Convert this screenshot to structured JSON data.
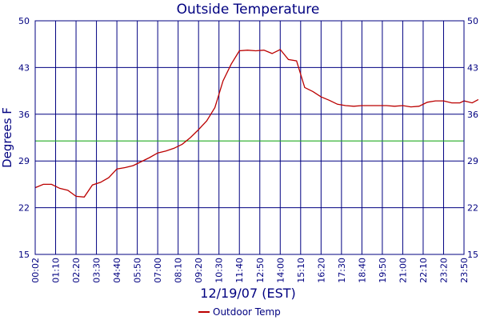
{
  "chart_data": {
    "type": "line",
    "title": "Outside Temperature",
    "xlabel": "12/19/07 (EST)",
    "ylabel": "Degrees F",
    "ylim": [
      15,
      50
    ],
    "yticks": [
      15,
      22,
      29,
      36,
      43,
      50
    ],
    "x_tick_labels": [
      "00:02",
      "01:10",
      "02:20",
      "03:30",
      "04:40",
      "05:50",
      "07:00",
      "08:10",
      "09:20",
      "10:30",
      "11:40",
      "12:50",
      "14:00",
      "15:10",
      "16:20",
      "17:30",
      "18:40",
      "19:50",
      "21:00",
      "22:10",
      "23:20",
      "23:50"
    ],
    "grid": true,
    "legend_position": "bottom",
    "colors": {
      "series": "#bb0000",
      "reference": "#22aa22",
      "grid": "#000080"
    },
    "reference_line": {
      "y": 32
    },
    "series": [
      {
        "name": "Outdoor Temp",
        "x": [
          0,
          0.4,
          0.8,
          1.2,
          1.6,
          2.0,
          2.4,
          2.8,
          3.2,
          3.6,
          4.0,
          4.4,
          4.8,
          5.2,
          5.6,
          6.0,
          6.4,
          6.8,
          7.2,
          7.6,
          8.0,
          8.4,
          8.8,
          9.2,
          9.6,
          10.0,
          10.4,
          10.8,
          11.2,
          11.6,
          12.0,
          12.4,
          12.8,
          13.2,
          13.6,
          14.0,
          14.4,
          14.8,
          15.2,
          15.6,
          16.0,
          16.4,
          16.8,
          17.2,
          17.6,
          18.0,
          18.4,
          18.8,
          19.2,
          19.6,
          20.0,
          20.4,
          20.8,
          21.0,
          21.4,
          21.7
        ],
        "values": [
          25.0,
          25.5,
          25.5,
          24.9,
          24.6,
          23.7,
          23.6,
          25.4,
          25.8,
          26.5,
          27.8,
          28.0,
          28.3,
          28.9,
          29.5,
          30.2,
          30.5,
          30.9,
          31.5,
          32.5,
          33.7,
          35.0,
          37.0,
          41.0,
          43.5,
          45.5,
          45.6,
          45.5,
          45.6,
          45.1,
          45.7,
          44.2,
          44.0,
          40.0,
          39.4,
          38.6,
          38.1,
          37.5,
          37.3,
          37.2,
          37.3,
          37.3,
          37.3,
          37.3,
          37.2,
          37.3,
          37.1,
          37.2,
          37.8,
          38.0,
          38.0,
          37.7,
          37.7,
          38.0,
          37.7,
          38.2
        ]
      }
    ]
  }
}
